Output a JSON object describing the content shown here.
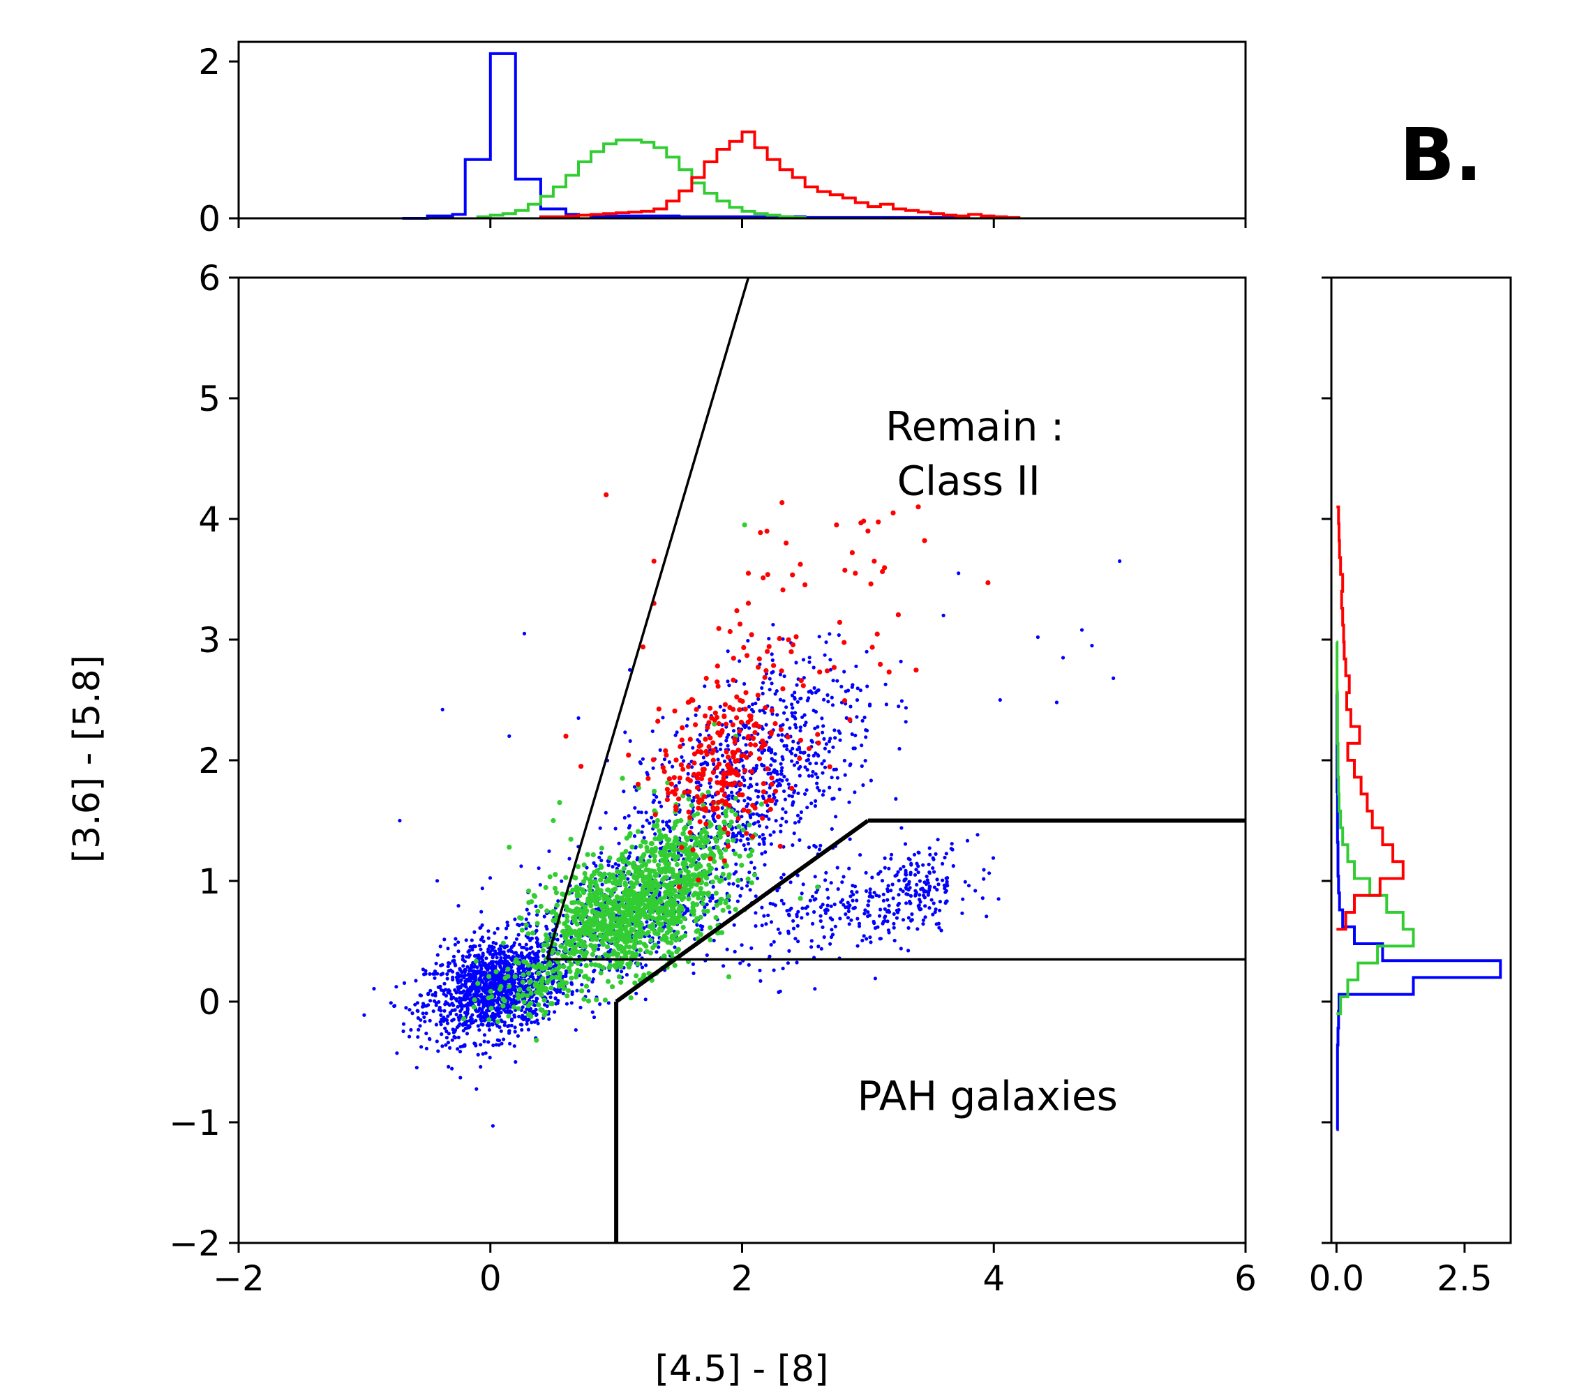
{
  "panel_label": "B.",
  "colors": {
    "blue": "#0000ff",
    "green": "#32cd32",
    "red": "#ff0000",
    "black": "#000000"
  },
  "chart_data": {
    "type": "scatter",
    "xlabel": "[4.5] - [8]",
    "ylabel": "[3.6] - [5.8]",
    "xlim": [
      -2,
      6
    ],
    "ylim": [
      -2,
      6
    ],
    "xticks": [
      -2,
      0,
      2,
      4,
      6
    ],
    "yticks": [
      -2,
      -1,
      0,
      1,
      2,
      3,
      4,
      5,
      6
    ],
    "xtick_labels": [
      "−2",
      "0",
      "2",
      "4",
      "6"
    ],
    "ytick_labels": [
      "−2",
      "−1",
      "0",
      "1",
      "2",
      "3",
      "4",
      "5",
      "6"
    ],
    "annotations": [
      {
        "text": "Remain :",
        "x": 3.85,
        "y": 4.65
      },
      {
        "text": "Class II",
        "x": 3.8,
        "y": 4.2
      },
      {
        "text": "PAH galaxies",
        "x": 3.95,
        "y": -0.9
      }
    ],
    "boundary_lines": [
      {
        "name": "class-i-boundary",
        "points": [
          [
            0.45,
            0.35
          ],
          [
            2.05,
            6.0
          ]
        ],
        "weight": "thin"
      },
      {
        "name": "class-ii-lower-boundary",
        "points": [
          [
            0.45,
            0.35
          ],
          [
            6.0,
            0.35
          ]
        ],
        "weight": "thin"
      },
      {
        "name": "pah-diagonal-boundary",
        "points": [
          [
            1.0,
            0.0
          ],
          [
            3.0,
            1.5
          ]
        ],
        "weight": "thick"
      },
      {
        "name": "pah-top-boundary",
        "points": [
          [
            3.0,
            1.5
          ],
          [
            6.0,
            1.5
          ]
        ],
        "weight": "thick"
      },
      {
        "name": "pah-vertical-boundary",
        "points": [
          [
            1.0,
            0.0
          ],
          [
            1.0,
            -2.0
          ]
        ],
        "weight": "thick"
      }
    ],
    "series": [
      {
        "name": "blue",
        "color": "#0000ff",
        "clusters": [
          {
            "cx": 0.05,
            "cy": 0.12,
            "sx": 0.28,
            "sy": 0.2,
            "n": 1400
          },
          {
            "cx": 1.1,
            "cy": 0.75,
            "sx": 0.45,
            "sy": 0.3,
            "n": 550
          },
          {
            "cx": 1.9,
            "cy": 1.7,
            "sx": 0.4,
            "sy": 0.35,
            "n": 500
          },
          {
            "cx": 2.4,
            "cy": 2.3,
            "sx": 0.35,
            "sy": 0.35,
            "n": 260
          },
          {
            "cx": 2.9,
            "cy": 0.75,
            "sx": 0.45,
            "sy": 0.22,
            "n": 240
          },
          {
            "cx": 3.4,
            "cy": 0.95,
            "sx": 0.2,
            "sy": 0.15,
            "n": 130
          }
        ],
        "outliers": [
          [
            0.15,
            2.2
          ],
          [
            0.27,
            3.05
          ],
          [
            -0.72,
            1.5
          ],
          [
            -0.38,
            2.42
          ],
          [
            0.02,
            -1.03
          ],
          [
            4.35,
            3.02
          ],
          [
            4.7,
            3.08
          ],
          [
            4.78,
            2.95
          ],
          [
            4.55,
            2.85
          ],
          [
            5.0,
            3.65
          ],
          [
            4.95,
            2.68
          ],
          [
            4.05,
            2.5
          ],
          [
            4.5,
            2.48
          ],
          [
            3.6,
            3.2
          ],
          [
            3.72,
            3.55
          ],
          [
            -0.55,
            0.05
          ],
          [
            0.2,
            -0.5
          ],
          [
            0.7,
            2.35
          ]
        ]
      },
      {
        "name": "green",
        "color": "#32cd32",
        "clusters": [
          {
            "cx": 1.05,
            "cy": 0.72,
            "sx": 0.33,
            "sy": 0.24,
            "n": 950
          },
          {
            "cx": 1.55,
            "cy": 1.15,
            "sx": 0.25,
            "sy": 0.25,
            "n": 320
          },
          {
            "cx": 0.35,
            "cy": 0.15,
            "sx": 0.22,
            "sy": 0.14,
            "n": 110
          }
        ],
        "outliers": [
          [
            2.02,
            3.95
          ],
          [
            0.15,
            1.28
          ],
          [
            0.55,
            1.65
          ],
          [
            1.05,
            1.85
          ],
          [
            1.78,
            2.3
          ],
          [
            1.95,
            2.2
          ],
          [
            2.1,
            1.05
          ],
          [
            2.6,
            0.95
          ],
          [
            -0.1,
            0.15
          ],
          [
            0.5,
            1.5
          ]
        ]
      },
      {
        "name": "red",
        "color": "#ff0000",
        "clusters": [
          {
            "cx": 1.85,
            "cy": 1.95,
            "sx": 0.25,
            "sy": 0.32,
            "n": 230
          },
          {
            "cx": 2.35,
            "cy": 2.9,
            "sx": 0.45,
            "sy": 0.5,
            "n": 70
          }
        ],
        "outliers": [
          [
            0.92,
            4.2
          ],
          [
            1.3,
            3.65
          ],
          [
            2.05,
            3.55
          ],
          [
            2.35,
            3.8
          ],
          [
            2.75,
            3.95
          ],
          [
            3.0,
            3.9
          ],
          [
            3.4,
            4.1
          ],
          [
            3.45,
            3.82
          ],
          [
            3.2,
            4.05
          ],
          [
            0.6,
            2.2
          ],
          [
            0.72,
            1.95
          ],
          [
            1.5,
            0.95
          ],
          [
            1.3,
            3.3
          ],
          [
            2.9,
            3.55
          ],
          [
            3.05,
            3.65
          ]
        ]
      }
    ],
    "marginal_top": {
      "ylim": [
        0,
        2.25
      ],
      "yticks": [
        0,
        2
      ],
      "ytick_labels": [
        "0",
        "2"
      ],
      "bin_width": 0.1,
      "series": [
        {
          "name": "blue",
          "color": "#0000ff",
          "bin_start": -0.7,
          "values": [
            0,
            0,
            0.03,
            0.03,
            0.05,
            0.75,
            0.75,
            2.1,
            2.1,
            0.5,
            0.5,
            0.12,
            0.12,
            0.05,
            0.04,
            0.03,
            0.03,
            0.03,
            0.03,
            0.03,
            0.03,
            0.03,
            0.02,
            0.02,
            0.02,
            0.02,
            0.02,
            0.02,
            0.02,
            0.02,
            0.02,
            0.02,
            0.01,
            0.01,
            0.01,
            0.01,
            0.01,
            0.01,
            0.01,
            0.01,
            0.01,
            0.01,
            0.01,
            0.01,
            0.01
          ]
        },
        {
          "name": "green",
          "color": "#32cd32",
          "bin_start": -0.1,
          "values": [
            0.02,
            0.04,
            0.06,
            0.1,
            0.18,
            0.28,
            0.4,
            0.55,
            0.72,
            0.85,
            0.95,
            1.0,
            1.0,
            0.97,
            0.9,
            0.78,
            0.62,
            0.45,
            0.32,
            0.22,
            0.14,
            0.09,
            0.06,
            0.04,
            0.02,
            0.01
          ]
        },
        {
          "name": "red",
          "color": "#ff0000",
          "bin_start": 0.4,
          "values": [
            0.02,
            0.02,
            0.03,
            0.04,
            0.05,
            0.06,
            0.07,
            0.08,
            0.09,
            0.12,
            0.22,
            0.35,
            0.52,
            0.72,
            0.88,
            0.98,
            1.1,
            0.9,
            0.75,
            0.62,
            0.52,
            0.4,
            0.34,
            0.3,
            0.26,
            0.2,
            0.15,
            0.18,
            0.12,
            0.1,
            0.08,
            0.06,
            0.04,
            0.03,
            0.05,
            0.03,
            0.02,
            0.01
          ]
        }
      ]
    },
    "marginal_right": {
      "xlim": [
        -0.1,
        3.4
      ],
      "xticks": [
        0.0,
        2.5
      ],
      "xtick_labels": [
        "0.0",
        "2.5"
      ],
      "bin_width": 0.14,
      "series": [
        {
          "name": "blue",
          "color": "#0000ff",
          "bin_start": -1.06,
          "values": [
            0.02,
            0.02,
            0.02,
            0.02,
            0.02,
            0.03,
            0.04,
            0.05,
            1.5,
            3.2,
            0.9,
            0.35,
            0.12,
            0.06,
            0.04,
            0.03,
            0.03,
            0.02,
            0.02,
            0.02,
            0.01,
            0.01,
            0.01,
            0.01,
            0.01,
            0.01
          ]
        },
        {
          "name": "green",
          "color": "#32cd32",
          "bin_start": -0.1,
          "values": [
            0.08,
            0.22,
            0.42,
            0.8,
            1.5,
            1.3,
            0.98,
            0.65,
            0.35,
            0.22,
            0.12,
            0.08,
            0.05,
            0.04,
            0.03,
            0.03,
            0.02,
            0.02,
            0.02,
            0.01,
            0.01,
            0.01
          ]
        },
        {
          "name": "red",
          "color": "#ff0000",
          "bin_start": 0.6,
          "values": [
            0.18,
            0.35,
            0.85,
            1.3,
            1.1,
            0.9,
            0.7,
            0.6,
            0.48,
            0.35,
            0.22,
            0.45,
            0.28,
            0.2,
            0.25,
            0.18,
            0.15,
            0.14,
            0.12,
            0.1,
            0.12,
            0.08,
            0.06,
            0.05,
            0.04
          ]
        }
      ]
    }
  }
}
